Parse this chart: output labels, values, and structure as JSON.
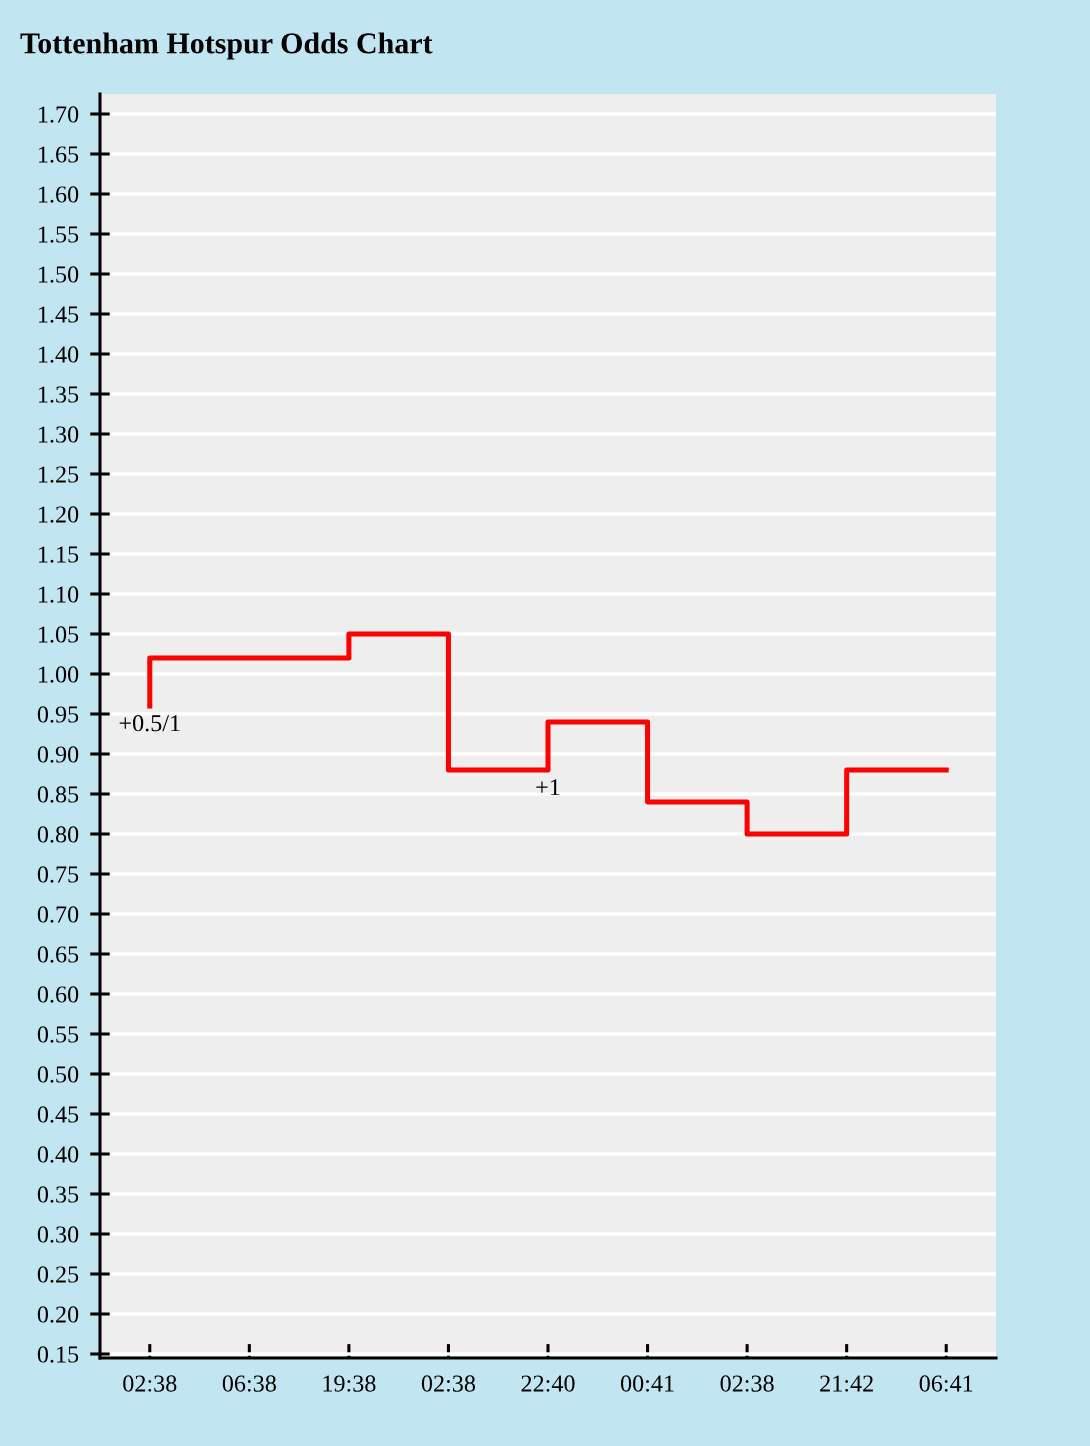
{
  "chart_data": {
    "type": "step",
    "title": "Tottenham Hotspur Odds Chart",
    "categories": [
      "02:38",
      "06:38",
      "19:38",
      "02:38",
      "22:40",
      "00:41",
      "02:38",
      "21:42",
      "06:41"
    ],
    "series": [
      {
        "color": "#ff0000",
        "values": [
          0.96,
          1.02,
          1.02,
          1.05,
          0.88,
          0.94,
          0.84,
          0.8,
          0.88
        ]
      }
    ],
    "ylim": [
      0.145,
      1.725
    ],
    "yticks": [
      {
        "value": 0.15,
        "label": "0.15"
      },
      {
        "value": 0.2,
        "label": "0.20"
      },
      {
        "value": 0.25,
        "label": "0.25"
      },
      {
        "value": 0.3,
        "label": "0.30"
      },
      {
        "value": 0.35,
        "label": "0.35"
      },
      {
        "value": 0.4,
        "label": "0.40"
      },
      {
        "value": 0.45,
        "label": "0.45"
      },
      {
        "value": 0.5,
        "label": "0.50"
      },
      {
        "value": 0.55,
        "label": "0.55"
      },
      {
        "value": 0.6,
        "label": "0.60"
      },
      {
        "value": 0.65,
        "label": "0.65"
      },
      {
        "value": 0.7,
        "label": "0.70"
      },
      {
        "value": 0.75,
        "label": "0.75"
      },
      {
        "value": 0.8,
        "label": "0.80"
      },
      {
        "value": 0.85,
        "label": "0.85"
      },
      {
        "value": 0.9,
        "label": "0.90"
      },
      {
        "value": 0.95,
        "label": "0.95"
      },
      {
        "value": 1.0,
        "label": "1.00"
      },
      {
        "value": 1.05,
        "label": "1.05"
      },
      {
        "value": 1.1,
        "label": "1.10"
      },
      {
        "value": 1.15,
        "label": "1.15"
      },
      {
        "value": 1.2,
        "label": "1.20"
      },
      {
        "value": 1.25,
        "label": "1.25"
      },
      {
        "value": 1.3,
        "label": "1.30"
      },
      {
        "value": 1.35,
        "label": "1.35"
      },
      {
        "value": 1.4,
        "label": "1.40"
      },
      {
        "value": 1.45,
        "label": "1.45"
      },
      {
        "value": 1.5,
        "label": "1.50"
      },
      {
        "value": 1.55,
        "label": "1.55"
      },
      {
        "value": 1.6,
        "label": "1.60"
      },
      {
        "value": 1.65,
        "label": "1.65"
      },
      {
        "value": 1.7,
        "label": "1.70"
      }
    ],
    "grid": "y",
    "annotations": [
      {
        "text": "+0.5/1",
        "x": "02:38",
        "y": 0.96
      },
      {
        "text": "+1",
        "x": "22:40",
        "y": 0.88
      }
    ]
  }
}
